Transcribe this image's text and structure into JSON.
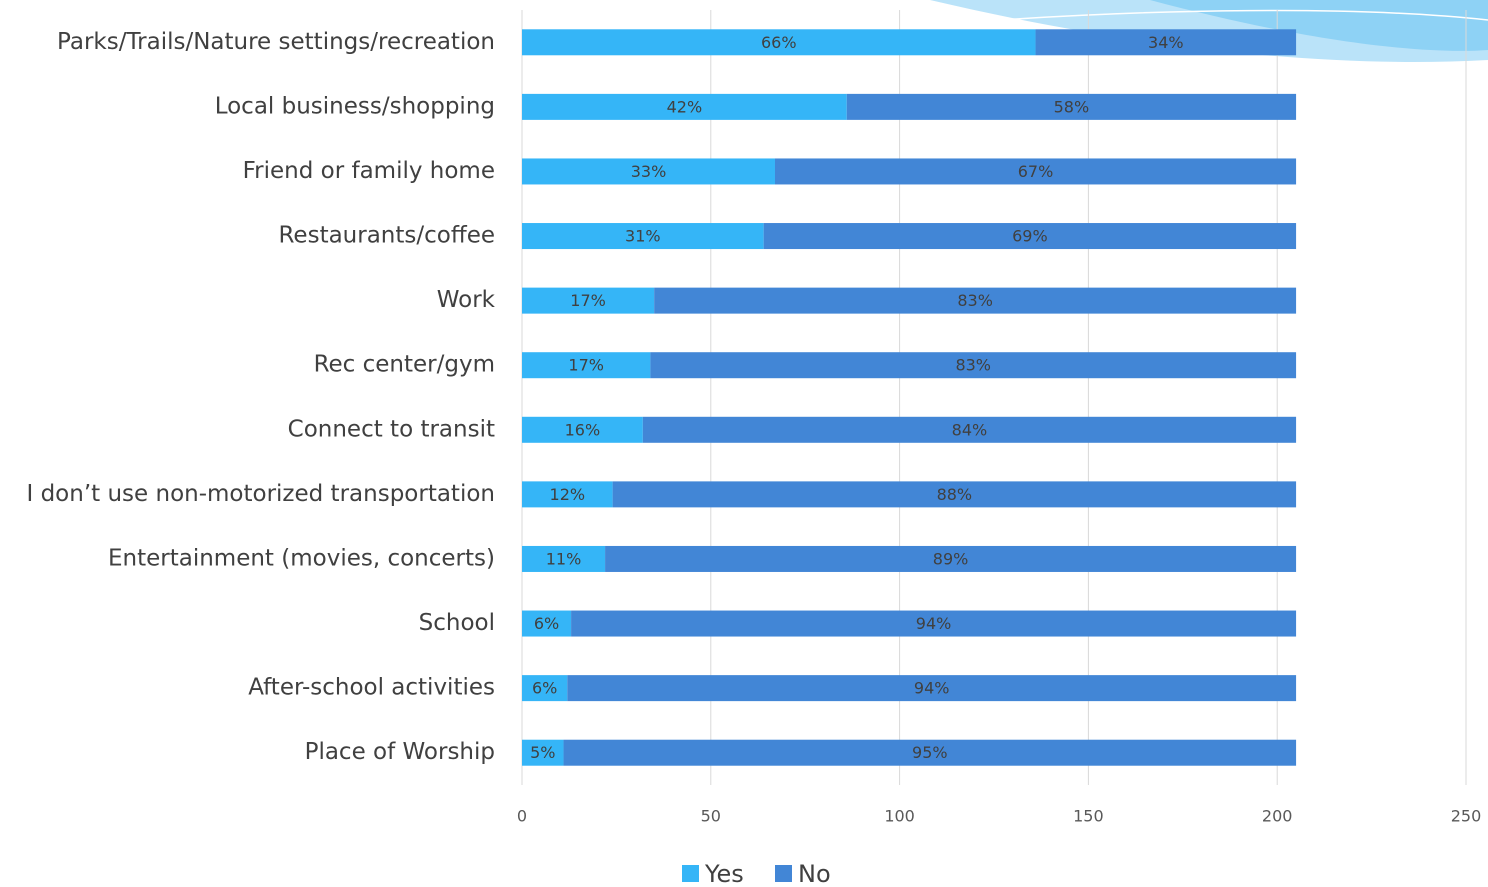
{
  "chart_data": {
    "type": "stacked-bar-horizontal",
    "categories": [
      "Parks/Trails/Nature settings/recreation",
      "Local business/shopping",
      "Friend or family home",
      "Restaurants/coffee",
      "Work",
      "Rec center/gym",
      "Connect to transit",
      "I don’t use non-motorized transportation",
      "Entertainment (movies, concerts)",
      "School",
      "After-school activities",
      "Place of Worship"
    ],
    "series": [
      {
        "name": "Yes",
        "color": "#35b5f7",
        "values": [
          136,
          86,
          67,
          64,
          35,
          34,
          32,
          24,
          22,
          13,
          12,
          11
        ],
        "value_labels": [
          "66%",
          "42%",
          "33%",
          "31%",
          "17%",
          "17%",
          "16%",
          "12%",
          "11%",
          "6%",
          "6%",
          "5%"
        ]
      },
      {
        "name": "No",
        "color": "#4286d6",
        "values": [
          69,
          119,
          138,
          141,
          170,
          171,
          173,
          181,
          183,
          192,
          193,
          194
        ],
        "value_labels": [
          "34%",
          "58%",
          "67%",
          "69%",
          "83%",
          "83%",
          "84%",
          "88%",
          "89%",
          "94%",
          "94%",
          "95%"
        ]
      }
    ],
    "xlim": [
      0,
      250
    ],
    "xticks": [
      0,
      50,
      100,
      150,
      200,
      250
    ],
    "grid": true,
    "legend": "bottom"
  }
}
